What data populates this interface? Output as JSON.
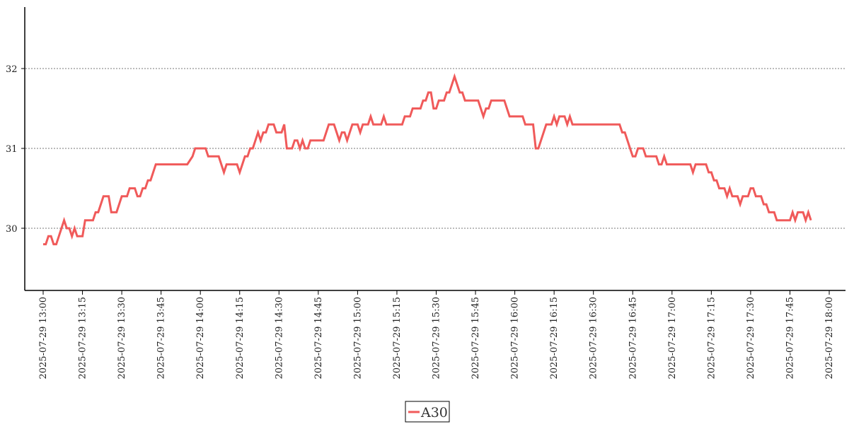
{
  "chart_data": {
    "type": "line",
    "title": "",
    "xlabel": "",
    "ylabel": "",
    "x_range": [
      "2025-07-29 13:00",
      "2025-07-29 18:00"
    ],
    "ylim": [
      29.2,
      32.8
    ],
    "grid": {
      "y": true,
      "x": false,
      "style": "dotted"
    },
    "legend": {
      "position": "bottom-center"
    },
    "x_ticks": [
      "2025-07-29 13:00",
      "2025-07-29 13:15",
      "2025-07-29 13:30",
      "2025-07-29 13:45",
      "2025-07-29 14:00",
      "2025-07-29 14:15",
      "2025-07-29 14:30",
      "2025-07-29 14:45",
      "2025-07-29 15:00",
      "2025-07-29 15:15",
      "2025-07-29 15:30",
      "2025-07-29 15:45",
      "2025-07-29 16:00",
      "2025-07-29 16:15",
      "2025-07-29 16:30",
      "2025-07-29 16:45",
      "2025-07-29 17:00",
      "2025-07-29 17:15",
      "2025-07-29 17:30",
      "2025-07-29 17:45",
      "2025-07-29 18:00"
    ],
    "y_ticks": [
      30,
      31,
      32
    ],
    "series": [
      {
        "name": "A30",
        "color": "#f05a5a",
        "points": [
          [
            "2025-07-29 13:00",
            29.8
          ],
          [
            "2025-07-29 13:01",
            29.8
          ],
          [
            "2025-07-29 13:02",
            29.9
          ],
          [
            "2025-07-29 13:03",
            29.9
          ],
          [
            "2025-07-29 13:04",
            29.8
          ],
          [
            "2025-07-29 13:05",
            29.8
          ],
          [
            "2025-07-29 13:06",
            29.9
          ],
          [
            "2025-07-29 13:07",
            30.0
          ],
          [
            "2025-07-29 13:08",
            30.1
          ],
          [
            "2025-07-29 13:09",
            30.0
          ],
          [
            "2025-07-29 13:10",
            30.0
          ],
          [
            "2025-07-29 13:11",
            29.9
          ],
          [
            "2025-07-29 13:12",
            30.0
          ],
          [
            "2025-07-29 13:13",
            29.9
          ],
          [
            "2025-07-29 13:14",
            29.9
          ],
          [
            "2025-07-29 13:15",
            29.9
          ],
          [
            "2025-07-29 13:16",
            30.1
          ],
          [
            "2025-07-29 13:17",
            30.1
          ],
          [
            "2025-07-29 13:18",
            30.1
          ],
          [
            "2025-07-29 13:19",
            30.1
          ],
          [
            "2025-07-29 13:20",
            30.2
          ],
          [
            "2025-07-29 13:21",
            30.2
          ],
          [
            "2025-07-29 13:22",
            30.3
          ],
          [
            "2025-07-29 13:23",
            30.4
          ],
          [
            "2025-07-29 13:24",
            30.4
          ],
          [
            "2025-07-29 13:25",
            30.4
          ],
          [
            "2025-07-29 13:26",
            30.2
          ],
          [
            "2025-07-29 13:27",
            30.2
          ],
          [
            "2025-07-29 13:28",
            30.2
          ],
          [
            "2025-07-29 13:29",
            30.3
          ],
          [
            "2025-07-29 13:30",
            30.4
          ],
          [
            "2025-07-29 13:31",
            30.4
          ],
          [
            "2025-07-29 13:32",
            30.4
          ],
          [
            "2025-07-29 13:33",
            30.5
          ],
          [
            "2025-07-29 13:34",
            30.5
          ],
          [
            "2025-07-29 13:35",
            30.5
          ],
          [
            "2025-07-29 13:36",
            30.4
          ],
          [
            "2025-07-29 13:37",
            30.4
          ],
          [
            "2025-07-29 13:38",
            30.5
          ],
          [
            "2025-07-29 13:39",
            30.5
          ],
          [
            "2025-07-29 13:40",
            30.6
          ],
          [
            "2025-07-29 13:41",
            30.6
          ],
          [
            "2025-07-29 13:42",
            30.7
          ],
          [
            "2025-07-29 13:43",
            30.8
          ],
          [
            "2025-07-29 13:44",
            30.8
          ],
          [
            "2025-07-29 13:45",
            30.8
          ],
          [
            "2025-07-29 13:50",
            30.8
          ],
          [
            "2025-07-29 13:55",
            30.8
          ],
          [
            "2025-07-29 13:57",
            30.9
          ],
          [
            "2025-07-29 13:58",
            31.0
          ],
          [
            "2025-07-29 14:02",
            31.0
          ],
          [
            "2025-07-29 14:03",
            30.9
          ],
          [
            "2025-07-29 14:07",
            30.9
          ],
          [
            "2025-07-29 14:08",
            30.8
          ],
          [
            "2025-07-29 14:09",
            30.7
          ],
          [
            "2025-07-29 14:10",
            30.8
          ],
          [
            "2025-07-29 14:14",
            30.8
          ],
          [
            "2025-07-29 14:15",
            30.7
          ],
          [
            "2025-07-29 14:16",
            30.8
          ],
          [
            "2025-07-29 14:17",
            30.9
          ],
          [
            "2025-07-29 14:18",
            30.9
          ],
          [
            "2025-07-29 14:19",
            31.0
          ],
          [
            "2025-07-29 14:20",
            31.0
          ],
          [
            "2025-07-29 14:21",
            31.1
          ],
          [
            "2025-07-29 14:22",
            31.2
          ],
          [
            "2025-07-29 14:23",
            31.1
          ],
          [
            "2025-07-29 14:24",
            31.2
          ],
          [
            "2025-07-29 14:25",
            31.2
          ],
          [
            "2025-07-29 14:26",
            31.3
          ],
          [
            "2025-07-29 14:27",
            31.3
          ],
          [
            "2025-07-29 14:28",
            31.3
          ],
          [
            "2025-07-29 14:29",
            31.2
          ],
          [
            "2025-07-29 14:30",
            31.2
          ],
          [
            "2025-07-29 14:31",
            31.2
          ],
          [
            "2025-07-29 14:32",
            31.3
          ],
          [
            "2025-07-29 14:33",
            31.0
          ],
          [
            "2025-07-29 14:34",
            31.0
          ],
          [
            "2025-07-29 14:35",
            31.0
          ],
          [
            "2025-07-29 14:36",
            31.1
          ],
          [
            "2025-07-29 14:37",
            31.1
          ],
          [
            "2025-07-29 14:38",
            31.0
          ],
          [
            "2025-07-29 14:39",
            31.1
          ],
          [
            "2025-07-29 14:40",
            31.0
          ],
          [
            "2025-07-29 14:41",
            31.0
          ],
          [
            "2025-07-29 14:42",
            31.1
          ],
          [
            "2025-07-29 14:43",
            31.1
          ],
          [
            "2025-07-29 14:47",
            31.1
          ],
          [
            "2025-07-29 14:49",
            31.3
          ],
          [
            "2025-07-29 14:51",
            31.3
          ],
          [
            "2025-07-29 14:52",
            31.2
          ],
          [
            "2025-07-29 14:53",
            31.1
          ],
          [
            "2025-07-29 14:54",
            31.2
          ],
          [
            "2025-07-29 14:55",
            31.2
          ],
          [
            "2025-07-29 14:56",
            31.1
          ],
          [
            "2025-07-29 14:57",
            31.2
          ],
          [
            "2025-07-29 14:58",
            31.3
          ],
          [
            "2025-07-29 14:59",
            31.3
          ],
          [
            "2025-07-29 15:00",
            31.3
          ],
          [
            "2025-07-29 15:01",
            31.2
          ],
          [
            "2025-07-29 15:02",
            31.3
          ],
          [
            "2025-07-29 15:03",
            31.3
          ],
          [
            "2025-07-29 15:04",
            31.3
          ],
          [
            "2025-07-29 15:05",
            31.4
          ],
          [
            "2025-07-29 15:06",
            31.3
          ],
          [
            "2025-07-29 15:09",
            31.3
          ],
          [
            "2025-07-29 15:10",
            31.4
          ],
          [
            "2025-07-29 15:11",
            31.3
          ],
          [
            "2025-07-29 15:17",
            31.3
          ],
          [
            "2025-07-29 15:18",
            31.4
          ],
          [
            "2025-07-29 15:20",
            31.4
          ],
          [
            "2025-07-29 15:21",
            31.5
          ],
          [
            "2025-07-29 15:24",
            31.5
          ],
          [
            "2025-07-29 15:25",
            31.6
          ],
          [
            "2025-07-29 15:26",
            31.6
          ],
          [
            "2025-07-29 15:27",
            31.7
          ],
          [
            "2025-07-29 15:28",
            31.7
          ],
          [
            "2025-07-29 15:29",
            31.5
          ],
          [
            "2025-07-29 15:30",
            31.5
          ],
          [
            "2025-07-29 15:31",
            31.6
          ],
          [
            "2025-07-29 15:33",
            31.6
          ],
          [
            "2025-07-29 15:34",
            31.7
          ],
          [
            "2025-07-29 15:35",
            31.7
          ],
          [
            "2025-07-29 15:36",
            31.8
          ],
          [
            "2025-07-29 15:37",
            31.9
          ],
          [
            "2025-07-29 15:38",
            31.8
          ],
          [
            "2025-07-29 15:39",
            31.7
          ],
          [
            "2025-07-29 15:40",
            31.7
          ],
          [
            "2025-07-29 15:41",
            31.6
          ],
          [
            "2025-07-29 15:46",
            31.6
          ],
          [
            "2025-07-29 15:47",
            31.5
          ],
          [
            "2025-07-29 15:48",
            31.4
          ],
          [
            "2025-07-29 15:49",
            31.5
          ],
          [
            "2025-07-29 15:50",
            31.5
          ],
          [
            "2025-07-29 15:51",
            31.6
          ],
          [
            "2025-07-29 15:56",
            31.6
          ],
          [
            "2025-07-29 15:57",
            31.5
          ],
          [
            "2025-07-29 15:58",
            31.4
          ],
          [
            "2025-07-29 16:03",
            31.4
          ],
          [
            "2025-07-29 16:04",
            31.3
          ],
          [
            "2025-07-29 16:07",
            31.3
          ],
          [
            "2025-07-29 16:08",
            31.0
          ],
          [
            "2025-07-29 16:09",
            31.0
          ],
          [
            "2025-07-29 16:10",
            31.1
          ],
          [
            "2025-07-29 16:11",
            31.2
          ],
          [
            "2025-07-29 16:12",
            31.3
          ],
          [
            "2025-07-29 16:14",
            31.3
          ],
          [
            "2025-07-29 16:15",
            31.4
          ],
          [
            "2025-07-29 16:16",
            31.3
          ],
          [
            "2025-07-29 16:17",
            31.4
          ],
          [
            "2025-07-29 16:19",
            31.4
          ],
          [
            "2025-07-29 16:20",
            31.3
          ],
          [
            "2025-07-29 16:21",
            31.4
          ],
          [
            "2025-07-29 16:22",
            31.3
          ],
          [
            "2025-07-29 16:40",
            31.3
          ],
          [
            "2025-07-29 16:41",
            31.2
          ],
          [
            "2025-07-29 16:42",
            31.2
          ],
          [
            "2025-07-29 16:43",
            31.1
          ],
          [
            "2025-07-29 16:44",
            31.0
          ],
          [
            "2025-07-29 16:45",
            30.9
          ],
          [
            "2025-07-29 16:46",
            30.9
          ],
          [
            "2025-07-29 16:47",
            31.0
          ],
          [
            "2025-07-29 16:49",
            31.0
          ],
          [
            "2025-07-29 16:50",
            30.9
          ],
          [
            "2025-07-29 16:54",
            30.9
          ],
          [
            "2025-07-29 16:55",
            30.8
          ],
          [
            "2025-07-29 16:56",
            30.8
          ],
          [
            "2025-07-29 16:57",
            30.9
          ],
          [
            "2025-07-29 16:58",
            30.8
          ],
          [
            "2025-07-29 17:07",
            30.8
          ],
          [
            "2025-07-29 17:08",
            30.7
          ],
          [
            "2025-07-29 17:09",
            30.8
          ],
          [
            "2025-07-29 17:13",
            30.8
          ],
          [
            "2025-07-29 17:14",
            30.7
          ],
          [
            "2025-07-29 17:15",
            30.7
          ],
          [
            "2025-07-29 17:16",
            30.6
          ],
          [
            "2025-07-29 17:17",
            30.6
          ],
          [
            "2025-07-29 17:18",
            30.5
          ],
          [
            "2025-07-29 17:20",
            30.5
          ],
          [
            "2025-07-29 17:21",
            30.4
          ],
          [
            "2025-07-29 17:22",
            30.5
          ],
          [
            "2025-07-29 17:23",
            30.4
          ],
          [
            "2025-07-29 17:25",
            30.4
          ],
          [
            "2025-07-29 17:26",
            30.3
          ],
          [
            "2025-07-29 17:27",
            30.4
          ],
          [
            "2025-07-29 17:29",
            30.4
          ],
          [
            "2025-07-29 17:30",
            30.5
          ],
          [
            "2025-07-29 17:31",
            30.5
          ],
          [
            "2025-07-29 17:32",
            30.4
          ],
          [
            "2025-07-29 17:34",
            30.4
          ],
          [
            "2025-07-29 17:35",
            30.3
          ],
          [
            "2025-07-29 17:36",
            30.3
          ],
          [
            "2025-07-29 17:37",
            30.2
          ],
          [
            "2025-07-29 17:39",
            30.2
          ],
          [
            "2025-07-29 17:40",
            30.1
          ],
          [
            "2025-07-29 17:45",
            30.1
          ],
          [
            "2025-07-29 17:46",
            30.2
          ],
          [
            "2025-07-29 17:47",
            30.1
          ],
          [
            "2025-07-29 17:48",
            30.2
          ],
          [
            "2025-07-29 17:50",
            30.2
          ],
          [
            "2025-07-29 17:51",
            30.1
          ],
          [
            "2025-07-29 17:52",
            30.2
          ],
          [
            "2025-07-29 17:53",
            30.1
          ]
        ]
      }
    ]
  }
}
